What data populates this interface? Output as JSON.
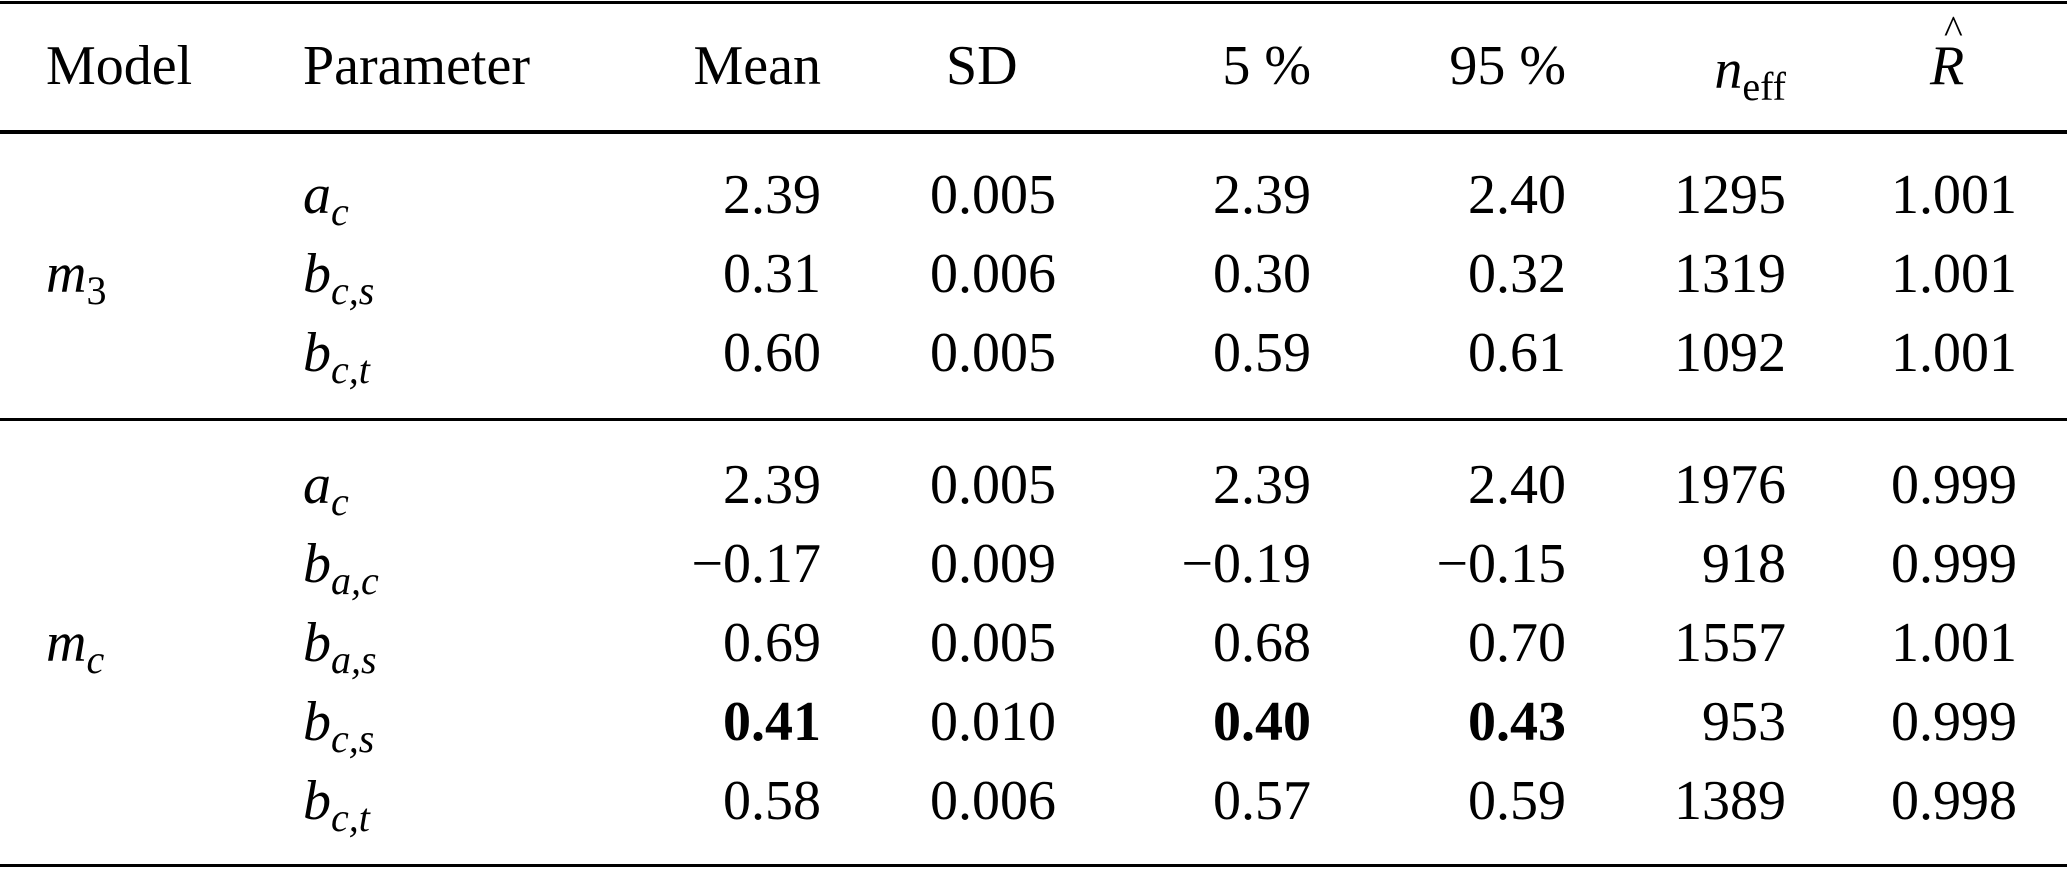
{
  "header": {
    "model": "Model",
    "parameter": "Parameter",
    "mean": "Mean",
    "sd": "SD",
    "p5": "5 %",
    "p95": "95 %",
    "neff_base": "n",
    "neff_sub": "eff",
    "rhat": "R"
  },
  "groups": [
    {
      "model_base": "m",
      "model_sub": "3",
      "rows": [
        {
          "param_base": "a",
          "param_sub": "c",
          "mean": "2.39",
          "sd": "0.005",
          "p5": "2.39",
          "p95": "2.40",
          "neff": "1295",
          "rhat": "1.001"
        },
        {
          "param_base": "b",
          "param_sub": "c,s",
          "mean": "0.31",
          "sd": "0.006",
          "p5": "0.30",
          "p95": "0.32",
          "neff": "1319",
          "rhat": "1.001"
        },
        {
          "param_base": "b",
          "param_sub": "c,t",
          "mean": "0.60",
          "sd": "0.005",
          "p5": "0.59",
          "p95": "0.61",
          "neff": "1092",
          "rhat": "1.001"
        }
      ]
    },
    {
      "model_base": "m",
      "model_sub": "c",
      "rows": [
        {
          "param_base": "a",
          "param_sub": "c",
          "mean": "2.39",
          "sd": "0.005",
          "p5": "2.39",
          "p95": "2.40",
          "neff": "1976",
          "rhat": "0.999"
        },
        {
          "param_base": "b",
          "param_sub": "a,c",
          "mean": "−0.17",
          "sd": "0.009",
          "p5": "−0.19",
          "p95": "−0.15",
          "neff": "918",
          "rhat": "0.999"
        },
        {
          "param_base": "b",
          "param_sub": "a,s",
          "mean": "0.69",
          "sd": "0.005",
          "p5": "0.68",
          "p95": "0.70",
          "neff": "1557",
          "rhat": "1.001"
        },
        {
          "param_base": "b",
          "param_sub": "c,s",
          "mean": "0.41",
          "sd": "0.010",
          "p5": "0.40",
          "p95": "0.43",
          "neff": "953",
          "rhat": "0.999",
          "bold": [
            "mean",
            "p5",
            "p95"
          ]
        },
        {
          "param_base": "b",
          "param_sub": "c,t",
          "mean": "0.58",
          "sd": "0.006",
          "p5": "0.57",
          "p95": "0.59",
          "neff": "1389",
          "rhat": "0.998"
        }
      ]
    }
  ]
}
